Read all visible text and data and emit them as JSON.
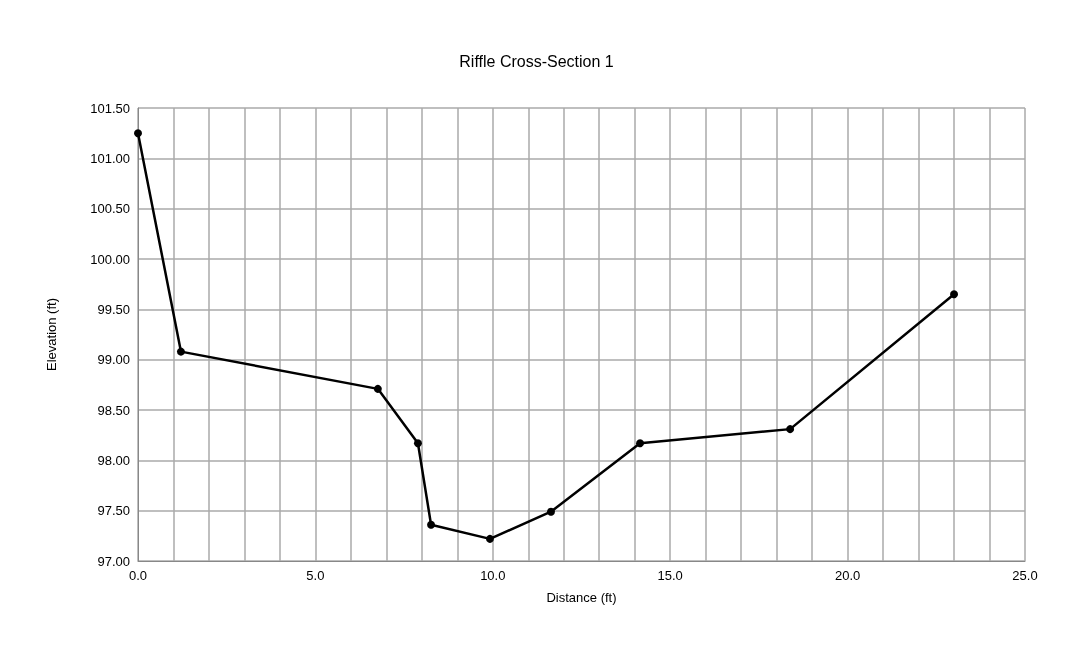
{
  "chart_data": {
    "type": "line",
    "title": "Riffle Cross-Section 1",
    "xlabel": "Distance (ft)",
    "ylabel": "Elevation (ft)",
    "x": [
      0,
      1.21,
      6.76,
      7.89,
      8.26,
      9.92,
      11.64,
      14.15,
      18.38,
      23.0
    ],
    "series": [
      {
        "color": "#000000",
        "values": [
          101.25,
          99.08,
          98.71,
          98.17,
          97.36,
          97.22,
          97.49,
          98.17,
          98.31,
          99.65
        ]
      }
    ],
    "xlim": [
      0,
      25
    ],
    "xticks": [
      {
        "value": 0,
        "label": "0.0"
      },
      {
        "value": 1,
        "label": null
      },
      {
        "value": 2,
        "label": null
      },
      {
        "value": 3,
        "label": null
      },
      {
        "value": 4,
        "label": null
      },
      {
        "value": 5,
        "label": "5.0"
      },
      {
        "value": 6,
        "label": null
      },
      {
        "value": 7,
        "label": null
      },
      {
        "value": 8,
        "label": null
      },
      {
        "value": 9,
        "label": null
      },
      {
        "value": 10,
        "label": "10.0"
      },
      {
        "value": 11,
        "label": null
      },
      {
        "value": 12,
        "label": null
      },
      {
        "value": 13,
        "label": null
      },
      {
        "value": 14,
        "label": null
      },
      {
        "value": 15,
        "label": "15.0"
      },
      {
        "value": 16,
        "label": null
      },
      {
        "value": 17,
        "label": null
      },
      {
        "value": 18,
        "label": null
      },
      {
        "value": 19,
        "label": null
      },
      {
        "value": 20,
        "label": "20.0"
      },
      {
        "value": 21,
        "label": null
      },
      {
        "value": 22,
        "label": null
      },
      {
        "value": 23,
        "label": null
      },
      {
        "value": 24,
        "label": null
      },
      {
        "value": 25,
        "label": "25.0"
      }
    ],
    "ylim": [
      97,
      101.5
    ],
    "yticks": [
      {
        "value": 97,
        "label": "97.00"
      },
      {
        "value": 97.5,
        "label": "97.50"
      },
      {
        "value": 98,
        "label": "98.00"
      },
      {
        "value": 98.5,
        "label": "98.50"
      },
      {
        "value": 99,
        "label": "99.00"
      },
      {
        "value": 99.5,
        "label": "99.50"
      },
      {
        "value": 100,
        "label": "100.00"
      },
      {
        "value": 100.5,
        "label": "100.50"
      },
      {
        "value": 101,
        "label": "101.00"
      },
      {
        "value": 101.5,
        "label": "101.50"
      }
    ],
    "grid": true,
    "marker": "circle",
    "line_style": "solid"
  }
}
